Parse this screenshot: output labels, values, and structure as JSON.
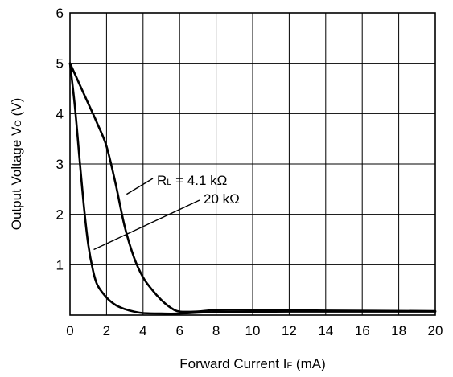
{
  "chart_data": {
    "type": "line",
    "title": "",
    "xlabel": {
      "main": "Forward Current  I",
      "sub": "F",
      "unit": " (mA)"
    },
    "ylabel": {
      "main": "Output Voltage  V",
      "sub": "O",
      "unit": " (V)"
    },
    "xlim": [
      0,
      20
    ],
    "ylim": [
      0,
      6
    ],
    "xticks": [
      0,
      2,
      4,
      6,
      8,
      10,
      12,
      14,
      16,
      18,
      20
    ],
    "yticks": [
      1,
      2,
      3,
      4,
      5,
      6
    ],
    "grid": true,
    "series": [
      {
        "name": "4.1 kΩ",
        "x": [
          0,
          0.5,
          1,
          1.5,
          2,
          2.5,
          3,
          3.5,
          4,
          4.5,
          5,
          5.5,
          6,
          7,
          8,
          10,
          14,
          20
        ],
        "y": [
          5.0,
          4.6,
          4.2,
          3.8,
          3.35,
          2.6,
          1.75,
          1.15,
          0.75,
          0.5,
          0.3,
          0.15,
          0.07,
          0.07,
          0.1,
          0.1,
          0.09,
          0.08
        ]
      },
      {
        "name": "20 kΩ",
        "x": [
          0,
          0.25,
          0.5,
          0.75,
          1,
          1.25,
          1.5,
          2,
          2.5,
          3,
          3.5,
          4,
          5,
          6,
          8,
          12,
          20
        ],
        "y": [
          5.0,
          4.2,
          3.2,
          2.2,
          1.4,
          0.9,
          0.6,
          0.35,
          0.2,
          0.12,
          0.07,
          0.04,
          0.03,
          0.03,
          0.06,
          0.07,
          0.07
        ]
      }
    ],
    "annotations": [
      {
        "rl_main": "R",
        "rl_sub": "L",
        "text": " = 4.1 kΩ",
        "target_series": 0,
        "target": [
          3.1,
          2.4
        ]
      },
      {
        "text": "20 kΩ",
        "target_series": 1,
        "target": [
          1.3,
          1.3
        ]
      }
    ]
  }
}
